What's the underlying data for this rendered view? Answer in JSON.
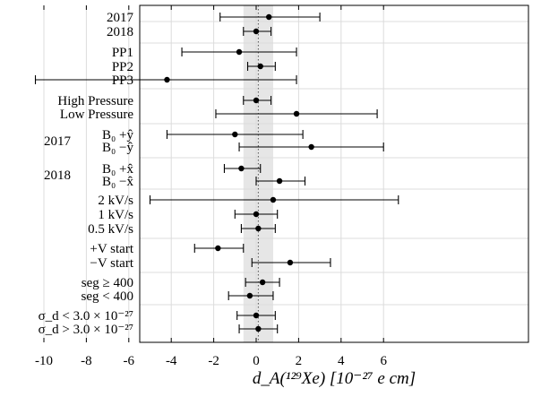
{
  "chart_data": {
    "type": "scatter",
    "subtype": "forest-plot",
    "title": "",
    "xlabel": "d_A(¹²⁹Xe) [10⁻²⁷ e cm]",
    "ylabel": "",
    "xlim": [
      -11,
      7
    ],
    "xticks": [
      -10,
      -8,
      -6,
      -4,
      -2,
      0,
      2,
      4,
      6
    ],
    "xtick_labels": [
      "-10",
      "-8",
      "-6",
      "-4",
      "-2",
      "0",
      "2",
      "4",
      "6"
    ],
    "grid": true,
    "reference_band": [
      -0.6,
      0.8
    ],
    "reference_line": 0.1,
    "colors": {
      "points": "#000000",
      "band": "#e6e6e6",
      "grid": "#dcdcdc",
      "reference_line": "#555555"
    },
    "rows": [
      {
        "label": "2017",
        "value": 0.6,
        "lo": -1.7,
        "hi": 3.0
      },
      {
        "label": "2018",
        "value": 0.0,
        "lo": -0.6,
        "hi": 0.7
      },
      {
        "label": "PP1",
        "value": -0.8,
        "lo": -3.5,
        "hi": 1.9
      },
      {
        "label": "PP2",
        "value": 0.2,
        "lo": -0.4,
        "hi": 0.9
      },
      {
        "label": "PP3",
        "value": -4.2,
        "lo": -10.4,
        "hi": 1.9
      },
      {
        "label": "High Pressure",
        "value": 0.0,
        "lo": -0.6,
        "hi": 0.7
      },
      {
        "label": "Low Pressure",
        "value": 1.9,
        "lo": -1.9,
        "hi": 5.7
      },
      {
        "label": "B₀ +ŷ",
        "group": "2017",
        "value": -1.0,
        "lo": -4.2,
        "hi": 2.2
      },
      {
        "label": "B₀ −ŷ",
        "group": "2017",
        "value": 2.6,
        "lo": -0.8,
        "hi": 6.0
      },
      {
        "label": "B₀ +x̂",
        "group": "2018",
        "value": -0.7,
        "lo": -1.5,
        "hi": 0.2
      },
      {
        "label": "B₀ −x̂",
        "group": "2018",
        "value": 1.1,
        "lo": 0.0,
        "hi": 2.3
      },
      {
        "label": "2 kV/s",
        "value": 0.8,
        "lo": -5.0,
        "hi": 6.7
      },
      {
        "label": "1 kV/s",
        "value": 0.0,
        "lo": -1.0,
        "hi": 1.0
      },
      {
        "label": "0.5 kV/s",
        "value": 0.1,
        "lo": -0.7,
        "hi": 0.9
      },
      {
        "label": "+V start",
        "value": -1.8,
        "lo": -2.9,
        "hi": -0.6
      },
      {
        "label": "−V start",
        "value": 1.6,
        "lo": -0.2,
        "hi": 3.5
      },
      {
        "label": "seg ≥ 400",
        "value": 0.3,
        "lo": -0.5,
        "hi": 1.1
      },
      {
        "label": "seg < 400",
        "value": -0.3,
        "lo": -1.3,
        "hi": 0.8
      },
      {
        "label": "σ_d < 3.0 × 10⁻²⁷",
        "value": 0.0,
        "lo": -0.9,
        "hi": 0.9
      },
      {
        "label": "σ_d > 3.0 × 10⁻²⁷",
        "value": 0.1,
        "lo": -0.8,
        "hi": 1.0
      }
    ],
    "group_labels": [
      "2017",
      "2018"
    ]
  }
}
